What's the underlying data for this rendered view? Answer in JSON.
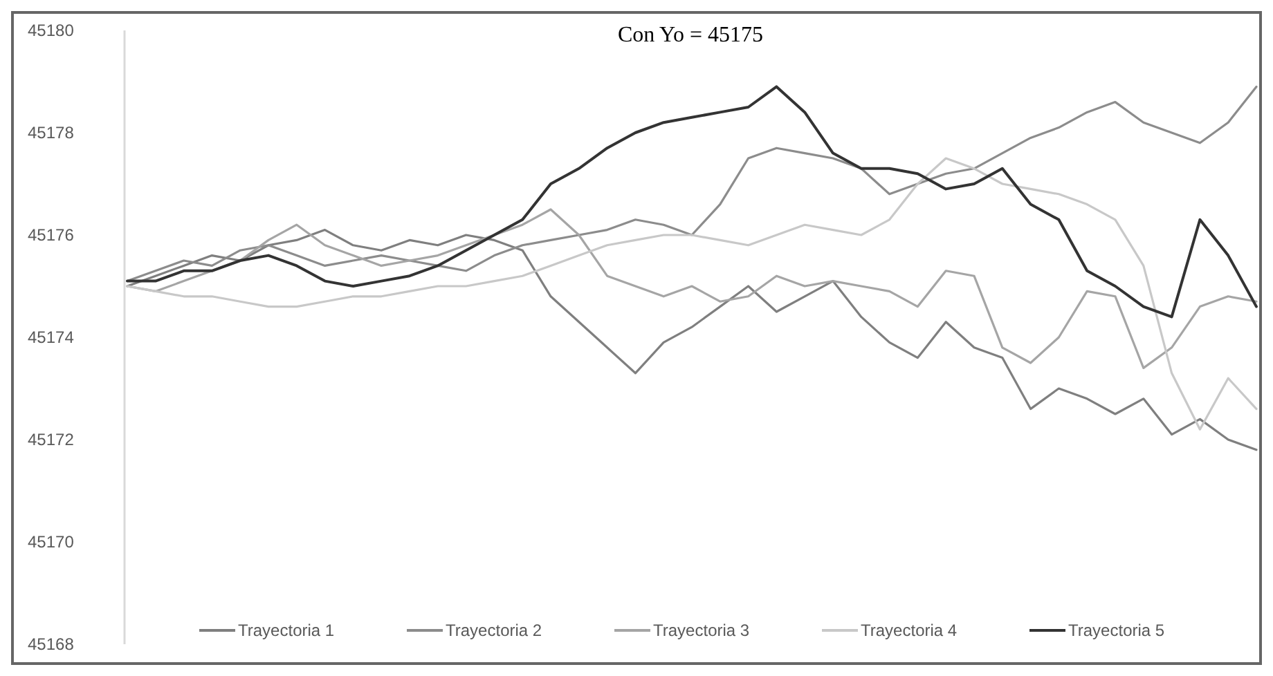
{
  "chart_data": {
    "type": "line",
    "title": "Con Yo = 45175",
    "categories": [
      null,
      null,
      null,
      null,
      null,
      null,
      null,
      null,
      null,
      null,
      null,
      null,
      null,
      null,
      null,
      null,
      null,
      null,
      null,
      null,
      null,
      null,
      null,
      null,
      null,
      null,
      null,
      null,
      null,
      null,
      null,
      null,
      null,
      null,
      null,
      null,
      null,
      null,
      null,
      null,
      null
    ],
    "series": [
      {
        "name": "Trayectoria 1",
        "color": "#7f7f7f",
        "values": [
          45175,
          45175.2,
          45175.4,
          45175.6,
          45175.5,
          45175.8,
          45175.9,
          45176.1,
          45175.8,
          45175.7,
          45175.9,
          45175.8,
          45176,
          45175.9,
          45175.7,
          45174.8,
          45174.3,
          45173.8,
          45173.3,
          45173.9,
          45174.2,
          45174.6,
          45175,
          45174.5,
          45174.8,
          45175.1,
          45174.4,
          45173.9,
          45173.6,
          45174.3,
          45173.8,
          45173.6,
          45172.6,
          45173,
          45172.8,
          45172.5,
          45172.8,
          45172.1,
          45172.4,
          45172,
          45171.8
        ]
      },
      {
        "name": "Trayectoria 2",
        "color": "#8c8c8c",
        "values": [
          45175.1,
          45175.3,
          45175.5,
          45175.4,
          45175.7,
          45175.8,
          45175.6,
          45175.4,
          45175.5,
          45175.6,
          45175.5,
          45175.4,
          45175.3,
          45175.6,
          45175.8,
          45175.9,
          45176,
          45176.1,
          45176.3,
          45176.2,
          45176,
          45176.6,
          45177.5,
          45177.7,
          45177.6,
          45177.5,
          45177.3,
          45176.8,
          45177,
          45177.2,
          45177.3,
          45177.6,
          45177.9,
          45178.1,
          45178.4,
          45178.6,
          45178.2,
          45178,
          45177.8,
          45178.2,
          45178.9
        ]
      },
      {
        "name": "Trayectoria 3",
        "color": "#a5a5a5",
        "values": [
          45175,
          45174.9,
          45175.1,
          45175.3,
          45175.5,
          45175.9,
          45176.2,
          45175.8,
          45175.6,
          45175.4,
          45175.5,
          45175.6,
          45175.8,
          45176,
          45176.2,
          45176.5,
          45176,
          45175.2,
          45175,
          45174.8,
          45175,
          45174.7,
          45174.8,
          45175.2,
          45175,
          45175.1,
          45175,
          45174.9,
          45174.6,
          45175.3,
          45175.2,
          45173.8,
          45173.5,
          45174,
          45174.9,
          45174.8,
          45173.4,
          45173.8,
          45174.6,
          45174.8,
          45174.7
        ]
      },
      {
        "name": "Trayectoria 4",
        "color": "#c8c8c8",
        "values": [
          45175,
          45174.9,
          45174.8,
          45174.8,
          45174.7,
          45174.6,
          45174.6,
          45174.7,
          45174.8,
          45174.8,
          45174.9,
          45175,
          45175,
          45175.1,
          45175.2,
          45175.4,
          45175.6,
          45175.8,
          45175.9,
          45176,
          45176,
          45175.9,
          45175.8,
          45176,
          45176.2,
          45176.1,
          45176,
          45176.3,
          45177,
          45177.5,
          45177.3,
          45177,
          45176.9,
          45176.8,
          45176.6,
          45176.3,
          45175.4,
          45173.3,
          45172.2,
          45173.2,
          45172.6
        ]
      },
      {
        "name": "Trayectoria 5",
        "color": "#333333",
        "values": [
          45175.1,
          45175.1,
          45175.3,
          45175.3,
          45175.5,
          45175.6,
          45175.4,
          45175.1,
          45175,
          45175.1,
          45175.2,
          45175.4,
          45175.7,
          45176,
          45176.3,
          45177,
          45177.3,
          45177.7,
          45178,
          45178.2,
          45178.3,
          45178.4,
          45178.5,
          45178.9,
          45178.4,
          45177.6,
          45177.3,
          45177.3,
          45177.2,
          45176.9,
          45177,
          45177.3,
          45176.6,
          45176.3,
          45175.3,
          45175,
          45174.6,
          45174.4,
          45176.3,
          45175.6,
          45174.6
        ]
      }
    ],
    "ylim": [
      45168,
      45180
    ],
    "yticks": [
      45168,
      45170,
      45172,
      45174,
      45176,
      45178,
      45180
    ],
    "grid": false,
    "legend": "bottom",
    "marker": "none",
    "line_style": "solid"
  }
}
